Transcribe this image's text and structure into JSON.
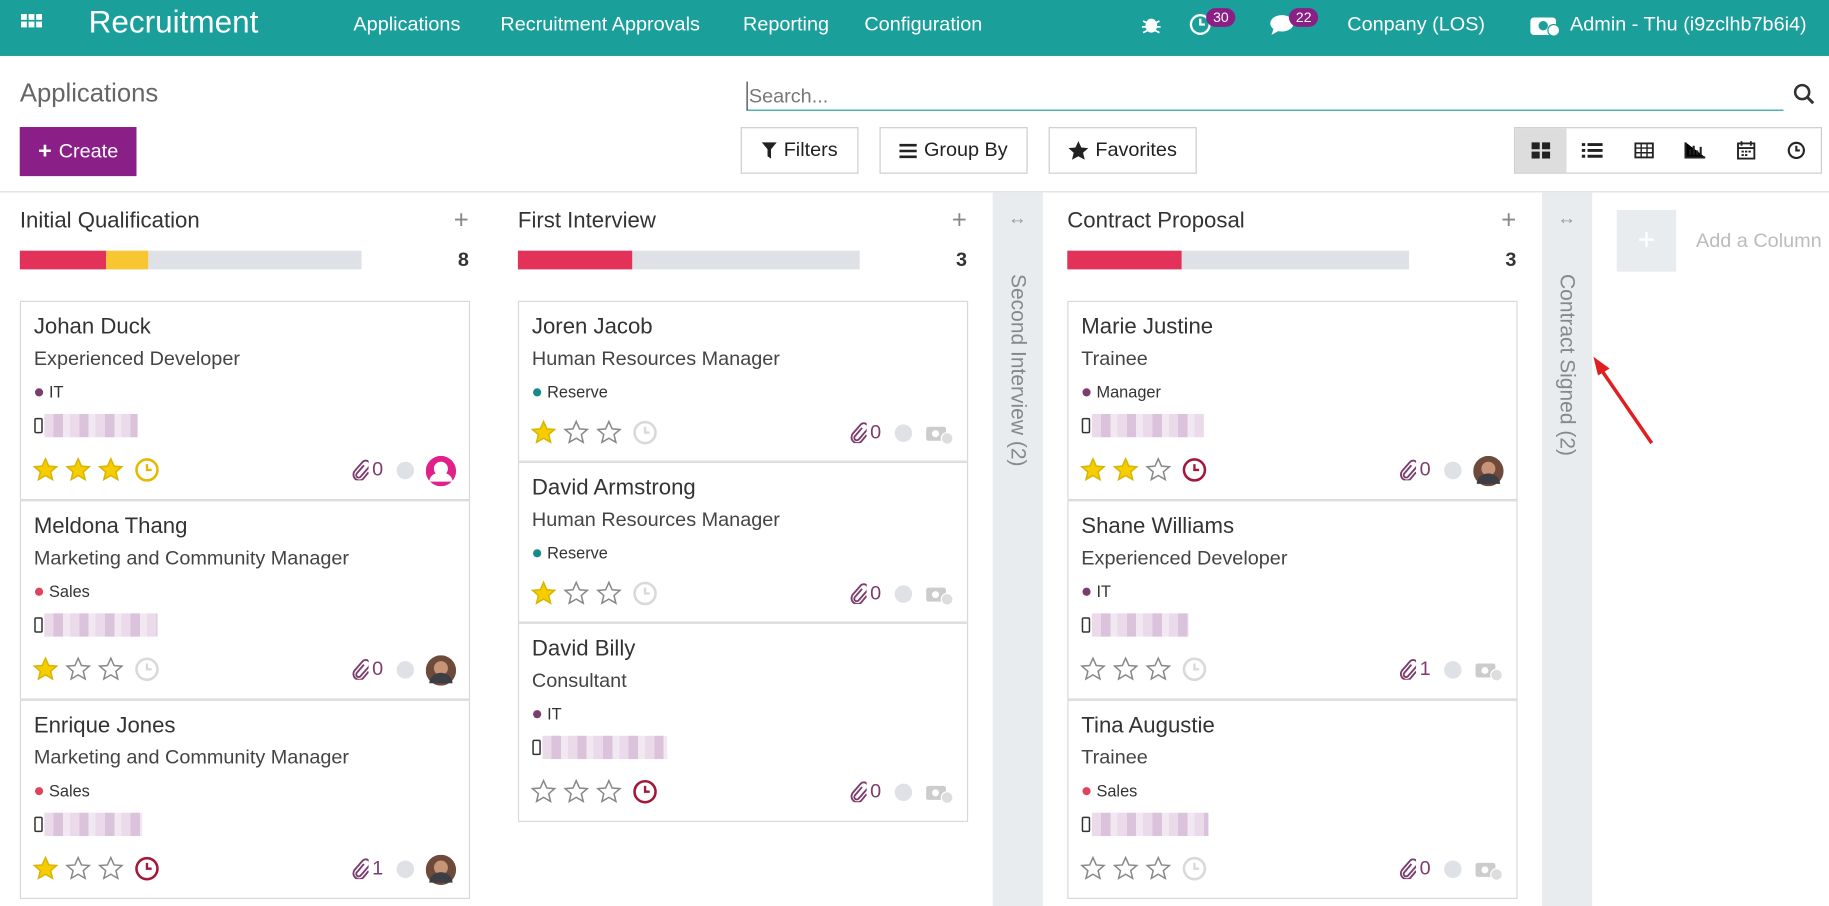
{
  "navbar": {
    "app": "Recruitment",
    "menus": [
      "Applications",
      "Recruitment Approvals",
      "Reporting",
      "Configuration"
    ],
    "activity_count": "30",
    "message_count": "22",
    "company": "Conpany (LOS)",
    "user": "Admin - Thu (i9zclhb7b6i4)"
  },
  "control_panel": {
    "breadcrumb": "Applications",
    "search_placeholder": "Search...",
    "create": "Create",
    "filters": "Filters",
    "group_by": "Group By",
    "favorites": "Favorites"
  },
  "columns": [
    {
      "title": "Initial Qualification",
      "count": "8",
      "cards": [
        {
          "name": "Johan Duck",
          "job": "Experienced Developer",
          "tag": "IT",
          "tag_color": "#7c3c6e",
          "phone": true,
          "stars": 3,
          "activity": "#e6b800",
          "attachments": "0",
          "avatar": "user"
        },
        {
          "name": "Meldona Thang",
          "job": "Marketing and Community Manager",
          "tag": "Sales",
          "tag_color": "#e0445b",
          "phone": true,
          "stars": 1,
          "activity": "#d9d9d9",
          "attachments": "0",
          "avatar": "photo"
        },
        {
          "name": "Enrique Jones",
          "job": "Marketing and Community Manager",
          "tag": "Sales",
          "tag_color": "#e0445b",
          "phone": true,
          "stars": 1,
          "activity": "#a3173a",
          "attachments": "1",
          "avatar": "photo"
        }
      ]
    },
    {
      "title": "First Interview",
      "count": "3",
      "cards": [
        {
          "name": "Joren Jacob",
          "job": "Human Resources Manager",
          "tag": "Reserve",
          "tag_color": "#178a87",
          "phone": false,
          "stars": 1,
          "activity": "#d9d9d9",
          "attachments": "0",
          "avatar": "none"
        },
        {
          "name": "David Armstrong",
          "job": "Human Resources Manager",
          "tag": "Reserve",
          "tag_color": "#178a87",
          "phone": false,
          "stars": 1,
          "activity": "#d9d9d9",
          "attachments": "0",
          "avatar": "none"
        },
        {
          "name": "David Billy",
          "job": "Consultant",
          "tag": "IT",
          "tag_color": "#7c3c6e",
          "phone": true,
          "stars": 0,
          "activity": "#a3173a",
          "attachments": "0",
          "avatar": "none"
        }
      ]
    },
    {
      "title": "Contract Proposal",
      "count": "3",
      "cards": [
        {
          "name": "Marie Justine",
          "job": "Trainee",
          "tag": "Manager",
          "tag_color": "#7c3c6e",
          "phone": true,
          "stars": 2,
          "activity": "#a3173a",
          "attachments": "0",
          "avatar": "photo"
        },
        {
          "name": "Shane Williams",
          "job": "Experienced Developer",
          "tag": "IT",
          "tag_color": "#7c3c6e",
          "phone": true,
          "stars": 0,
          "activity": "#d9d9d9",
          "attachments": "1",
          "avatar": "none"
        },
        {
          "name": "Tina Augustie",
          "job": "Trainee",
          "tag": "Sales",
          "tag_color": "#e0445b",
          "phone": true,
          "stars": 0,
          "activity": "#d9d9d9",
          "attachments": "0",
          "avatar": "none"
        }
      ]
    }
  ],
  "folded_columns": [
    "Second Interview (2)",
    "Contract Signed (2)"
  ],
  "add_column": "Add a Column"
}
